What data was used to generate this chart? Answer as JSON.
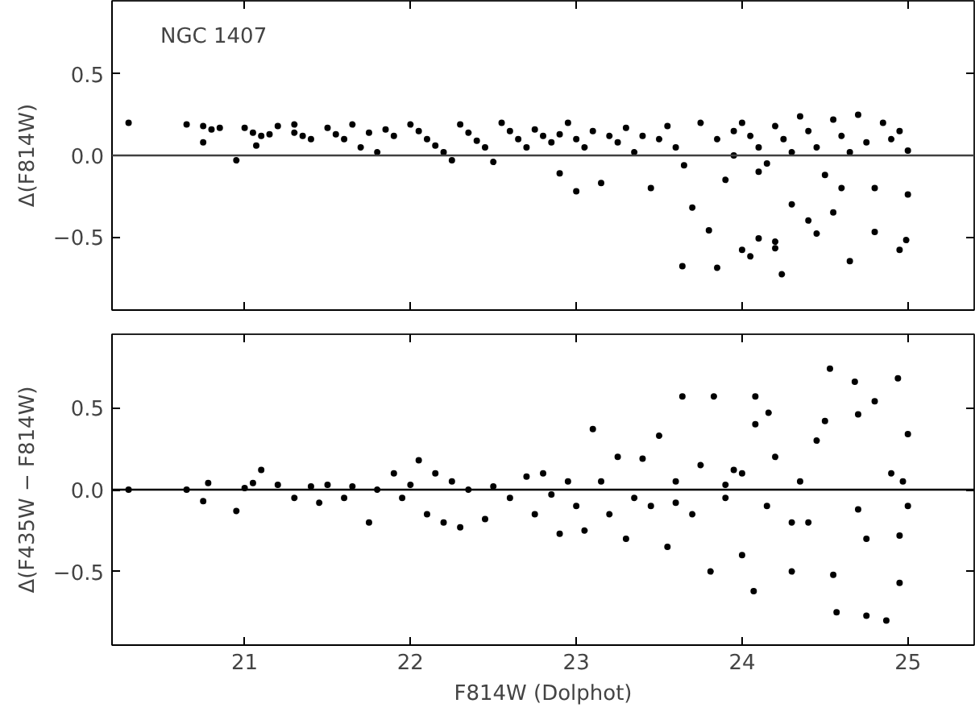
{
  "chart_data": [
    {
      "type": "scatter",
      "ylabel": "Δ(F814W)",
      "annotations": [
        "NGC 1407"
      ],
      "xlim": [
        20.2,
        25.4
      ],
      "xticks": [
        21,
        22,
        23,
        24,
        25
      ],
      "ylim": [
        -0.95,
        0.95
      ],
      "yticks": [
        {
          "value": -0.5,
          "label": "−0.5"
        },
        {
          "value": 0,
          "label": "0.0"
        },
        {
          "value": 0.5,
          "label": "0.5"
        }
      ],
      "tick_labels": "y",
      "grid": false,
      "marker": "circle",
      "ref_lines": [
        {
          "axis": "y",
          "value": 0,
          "color": "#404040"
        }
      ],
      "series": [
        {
          "color": "#000000",
          "x": [
            20.3,
            20.65,
            20.75,
            20.75,
            20.8,
            20.85,
            20.95,
            21.0,
            21.05,
            21.07,
            21.1,
            21.15,
            21.2,
            21.3,
            21.3,
            21.35,
            21.4,
            21.5,
            21.55,
            21.6,
            21.65,
            21.7,
            21.75,
            21.8,
            21.85,
            21.9,
            22.0,
            22.05,
            22.1,
            22.15,
            22.2,
            22.25,
            22.3,
            22.35,
            22.4,
            22.45,
            22.5,
            22.55,
            22.6,
            22.65,
            22.7,
            22.75,
            22.8,
            22.85,
            22.9,
            22.9,
            22.95,
            23.0,
            23.0,
            23.05,
            23.1,
            23.15,
            23.2,
            23.25,
            23.3,
            23.35,
            23.4,
            23.45,
            23.5,
            23.55,
            23.6,
            23.65,
            23.7,
            23.75,
            23.8,
            23.85,
            23.9,
            23.95,
            23.64,
            23.85,
            24.0,
            24.05,
            24.1,
            24.2,
            24.2,
            24.24,
            24.45,
            24.65,
            24.8,
            24.95,
            24.99,
            25.0,
            24.55,
            24.4,
            24.3,
            24.0,
            24.05,
            24.1,
            24.15,
            24.2,
            24.25,
            24.3,
            24.35,
            24.4,
            24.45,
            24.5,
            24.55,
            24.6,
            24.65,
            24.7,
            24.75,
            24.8,
            24.85,
            24.9,
            24.95,
            25.0,
            24.6,
            24.1,
            23.95
          ],
          "values": [
            0.2,
            0.19,
            0.18,
            0.08,
            0.16,
            0.17,
            -0.03,
            0.17,
            0.14,
            0.06,
            0.12,
            0.13,
            0.18,
            0.19,
            0.14,
            0.12,
            0.1,
            0.17,
            0.13,
            0.1,
            0.19,
            0.05,
            0.14,
            0.02,
            0.16,
            0.12,
            0.19,
            0.15,
            0.1,
            0.06,
            0.02,
            -0.03,
            0.19,
            0.14,
            0.09,
            0.05,
            -0.04,
            0.2,
            0.15,
            0.1,
            0.05,
            0.16,
            0.12,
            0.08,
            0.13,
            -0.11,
            0.2,
            0.1,
            -0.22,
            0.05,
            0.15,
            -0.17,
            0.12,
            0.08,
            0.17,
            0.02,
            0.12,
            -0.2,
            0.1,
            0.18,
            0.05,
            -0.06,
            -0.32,
            0.2,
            -0.46,
            0.1,
            -0.15,
            0.0,
            -0.68,
            -0.69,
            -0.58,
            -0.62,
            -0.51,
            -0.53,
            -0.57,
            -0.73,
            -0.48,
            -0.65,
            -0.47,
            -0.58,
            -0.52,
            -0.24,
            -0.35,
            -0.4,
            -0.3,
            0.2,
            0.12,
            0.05,
            -0.05,
            0.18,
            0.1,
            0.02,
            0.24,
            0.15,
            0.05,
            -0.12,
            0.22,
            0.12,
            0.02,
            0.25,
            0.08,
            -0.2,
            0.2,
            0.1,
            0.15,
            0.03,
            -0.2,
            -0.1,
            0.15
          ]
        }
      ]
    },
    {
      "type": "scatter",
      "xlabel": "F814W (Dolphot)",
      "ylabel": "Δ(F435W − F814W)",
      "xlim": [
        20.2,
        25.4
      ],
      "xticks": [
        21,
        22,
        23,
        24,
        25
      ],
      "ylim": [
        -0.95,
        0.95
      ],
      "yticks": [
        {
          "value": -0.5,
          "label": "−0.5"
        },
        {
          "value": 0,
          "label": "0.0"
        },
        {
          "value": 0.5,
          "label": "0.5"
        }
      ],
      "grid": false,
      "marker": "circle",
      "ref_lines": [
        {
          "axis": "y",
          "value": 0,
          "color": "#000000"
        }
      ],
      "series": [
        {
          "color": "#000000",
          "x": [
            20.3,
            20.65,
            20.75,
            20.78,
            20.95,
            21.0,
            21.05,
            21.1,
            21.2,
            21.3,
            21.4,
            21.45,
            21.5,
            21.6,
            21.65,
            21.75,
            21.8,
            21.9,
            21.95,
            22.0,
            22.05,
            22.1,
            22.15,
            22.2,
            22.25,
            22.3,
            22.35,
            22.45,
            22.5,
            22.6,
            22.7,
            22.75,
            22.8,
            22.85,
            22.9,
            22.95,
            23.0,
            23.05,
            23.1,
            23.15,
            23.2,
            23.25,
            23.3,
            23.35,
            23.4,
            23.45,
            23.5,
            23.55,
            23.6,
            23.64,
            23.7,
            23.75,
            23.81,
            23.83,
            23.9,
            23.95,
            24.0,
            24.07,
            24.08,
            24.08,
            24.15,
            24.2,
            24.16,
            24.3,
            24.35,
            24.4,
            24.45,
            24.5,
            24.55,
            24.53,
            24.57,
            24.7,
            24.75,
            24.68,
            24.75,
            24.9,
            24.8,
            24.87,
            24.95,
            24.94,
            25.0,
            25.0,
            24.97,
            24.95,
            24.7,
            24.3,
            23.9,
            23.6,
            24.0
          ],
          "values": [
            0.0,
            0.0,
            -0.07,
            0.04,
            -0.13,
            0.01,
            0.04,
            0.12,
            0.03,
            -0.05,
            0.02,
            -0.08,
            0.03,
            -0.05,
            0.02,
            -0.2,
            0.0,
            0.1,
            -0.05,
            0.03,
            0.18,
            -0.15,
            0.1,
            -0.2,
            0.05,
            -0.23,
            0.0,
            -0.18,
            0.02,
            -0.05,
            0.08,
            -0.15,
            0.1,
            -0.03,
            -0.27,
            0.05,
            -0.1,
            -0.25,
            0.37,
            0.05,
            -0.15,
            0.2,
            -0.3,
            -0.05,
            0.19,
            -0.1,
            0.33,
            -0.35,
            0.05,
            0.57,
            -0.15,
            0.15,
            -0.5,
            0.57,
            -0.05,
            0.12,
            -0.4,
            -0.62,
            0.4,
            0.57,
            -0.1,
            0.2,
            0.47,
            -0.5,
            0.05,
            -0.2,
            0.3,
            0.42,
            -0.52,
            0.74,
            -0.75,
            0.46,
            -0.3,
            0.66,
            -0.77,
            0.1,
            0.54,
            -0.8,
            -0.57,
            0.68,
            0.34,
            -0.1,
            0.05,
            -0.28,
            -0.12,
            -0.2,
            0.03,
            -0.08,
            0.1
          ]
        }
      ]
    }
  ]
}
